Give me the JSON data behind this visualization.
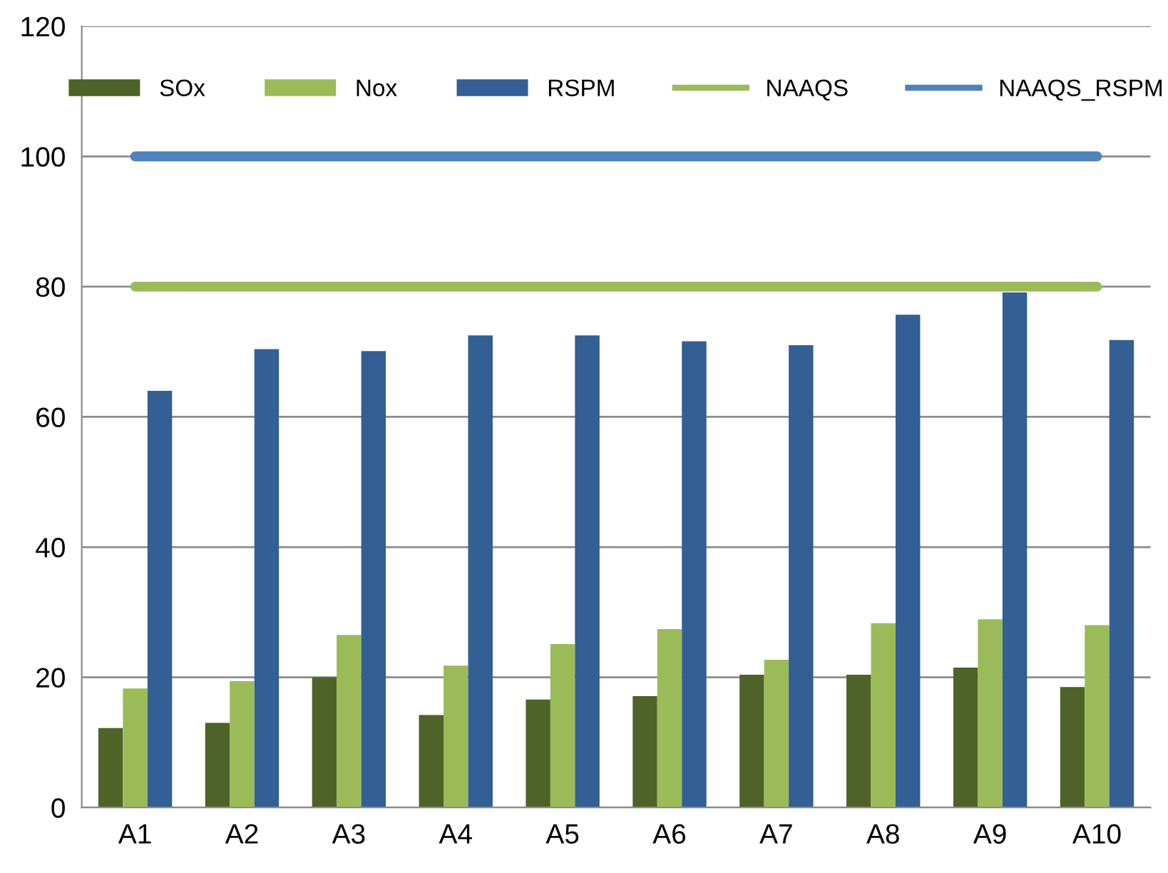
{
  "chart_data": {
    "type": "bar",
    "categories": [
      "A1",
      "A2",
      "A3",
      "A4",
      "A5",
      "A6",
      "A7",
      "A8",
      "A9",
      "A10"
    ],
    "series": [
      {
        "name": "SOx",
        "color": "#4f6228",
        "values": [
          12.2,
          13.0,
          20.0,
          14.2,
          16.6,
          17.1,
          20.4,
          20.4,
          21.5,
          18.5
        ]
      },
      {
        "name": "Nox",
        "color": "#9bbb59",
        "values": [
          18.3,
          19.4,
          26.5,
          21.8,
          25.1,
          27.4,
          22.7,
          28.3,
          28.9,
          28.0
        ]
      },
      {
        "name": "RSPM",
        "color": "#335f94",
        "values": [
          64.0,
          70.4,
          70.1,
          72.5,
          72.5,
          71.6,
          71.0,
          75.7,
          79.1,
          71.8
        ]
      },
      {
        "name": "NAAQS",
        "type": "line",
        "color": "#9bbb59",
        "values": [
          80,
          80,
          80,
          80,
          80,
          80,
          80,
          80,
          80,
          80
        ]
      },
      {
        "name": "NAAQS_RSPM",
        "type": "line",
        "color": "#4f81bd",
        "values": [
          100,
          100,
          100,
          100,
          100,
          100,
          100,
          100,
          100,
          100
        ]
      }
    ],
    "ylim": [
      0,
      120
    ],
    "yticks": [
      0,
      20,
      40,
      60,
      80,
      100,
      120
    ],
    "grid": "y",
    "legend": "top",
    "marker": "none",
    "line_style": "solid"
  }
}
